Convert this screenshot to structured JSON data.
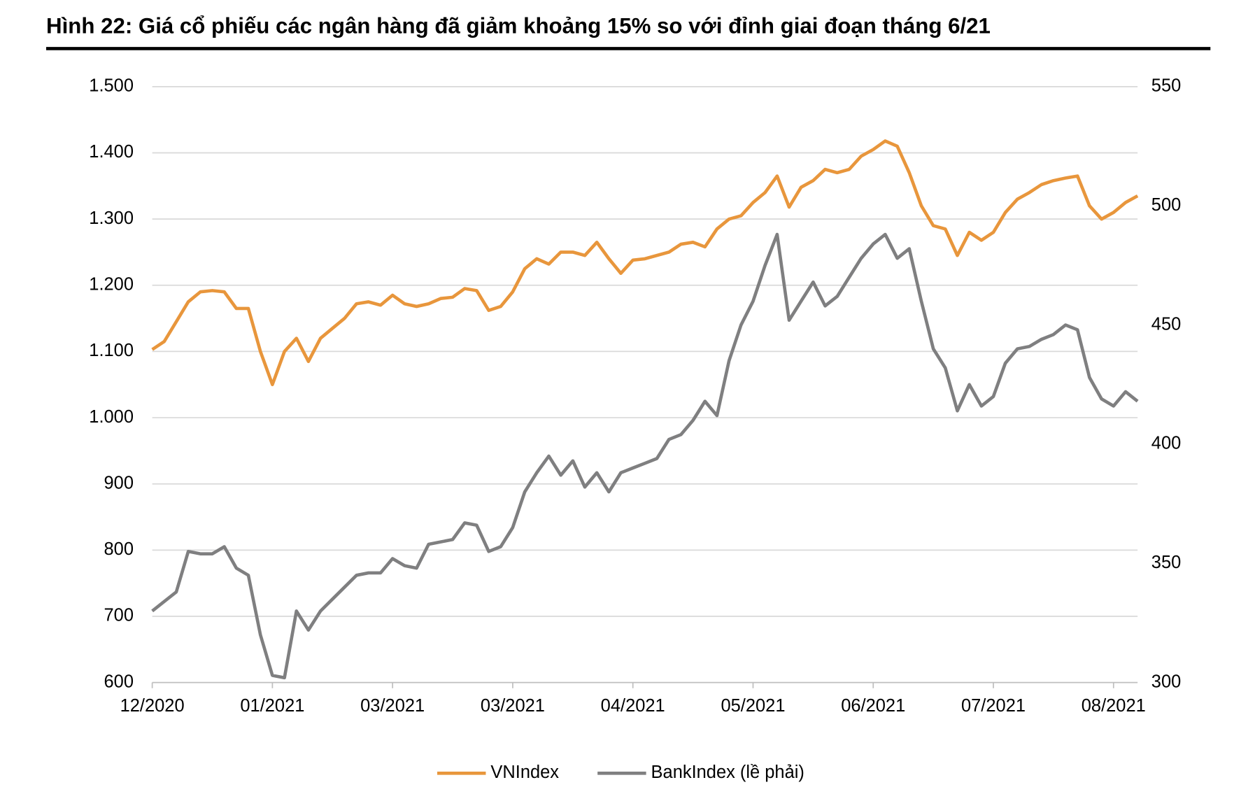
{
  "chart_data": {
    "type": "line",
    "title": "Hình 22: Giá cổ phiếu các ngân hàng đã giảm khoảng 15% so với đỉnh giai đoạn tháng 6/21",
    "categories": [
      "12/2020",
      null,
      null,
      null,
      null,
      null,
      null,
      null,
      null,
      null,
      "01/2021",
      null,
      null,
      null,
      null,
      null,
      null,
      null,
      null,
      null,
      "03/2021",
      null,
      null,
      null,
      null,
      null,
      null,
      null,
      null,
      null,
      "03/2021",
      null,
      null,
      null,
      null,
      null,
      null,
      null,
      null,
      null,
      "04/2021",
      null,
      null,
      null,
      null,
      null,
      null,
      null,
      null,
      null,
      "05/2021",
      null,
      null,
      null,
      null,
      null,
      null,
      null,
      null,
      null,
      "06/2021",
      null,
      null,
      null,
      null,
      null,
      null,
      null,
      null,
      null,
      "07/2021",
      null,
      null,
      null,
      null,
      null,
      null,
      null,
      null,
      null,
      "08/2021",
      null,
      null
    ],
    "series": [
      {
        "name": "VNIndex",
        "color": "#e8963c",
        "values": [
          1103,
          1115,
          1145,
          1175,
          1190,
          1192,
          1190,
          1165,
          1165,
          1100,
          1050,
          1100,
          1120,
          1085,
          1120,
          1135,
          1150,
          1172,
          1175,
          1170,
          1185,
          1172,
          1168,
          1172,
          1180,
          1182,
          1195,
          1192,
          1162,
          1168,
          1190,
          1225,
          1240,
          1232,
          1250,
          1250,
          1245,
          1265,
          1240,
          1218,
          1238,
          1240,
          1245,
          1250,
          1262,
          1265,
          1258,
          1285,
          1300,
          1305,
          1325,
          1340,
          1365,
          1318,
          1348,
          1358,
          1375,
          1370,
          1375,
          1395,
          1405,
          1418,
          1410,
          1370,
          1320,
          1290,
          1285,
          1245,
          1280,
          1268,
          1280,
          1310,
          1330,
          1340,
          1352,
          1358,
          1362,
          1365,
          1320,
          1300,
          1310,
          1325,
          1335
        ]
      },
      {
        "name": "BankIndex (lề phải)",
        "color": "#7f7f80",
        "axis": "y2",
        "values": [
          330,
          334,
          338,
          355,
          354,
          354,
          357,
          348,
          345,
          320,
          303,
          302,
          330,
          322,
          330,
          335,
          340,
          345,
          346,
          346,
          352,
          349,
          348,
          358,
          359,
          360,
          367,
          366,
          355,
          357,
          365,
          380,
          388,
          395,
          387,
          393,
          382,
          388,
          380,
          388,
          390,
          392,
          394,
          402,
          404,
          410,
          418,
          412,
          435,
          450,
          460,
          475,
          488,
          452,
          460,
          468,
          458,
          462,
          470,
          478,
          484,
          488,
          478,
          482,
          460,
          440,
          432,
          414,
          425,
          416,
          420,
          434,
          440,
          441,
          444,
          446,
          450,
          448,
          428,
          419,
          416,
          422,
          418
        ]
      }
    ],
    "ylim": [
      600,
      1500
    ],
    "yticks": [
      600,
      700,
      800,
      900,
      {
        "value": 1000,
        "label": "1.000"
      },
      {
        "value": 1100,
        "label": "1.100"
      },
      {
        "value": 1200,
        "label": "1.200"
      },
      {
        "value": 1300,
        "label": "1.300"
      },
      {
        "value": 1400,
        "label": "1.400"
      },
      {
        "value": 1500,
        "label": "1.500"
      }
    ],
    "y2lim": [
      300,
      550
    ],
    "y2ticks": [
      300,
      350,
      400,
      450,
      500,
      550
    ],
    "grid": true,
    "legend": "bottom"
  }
}
